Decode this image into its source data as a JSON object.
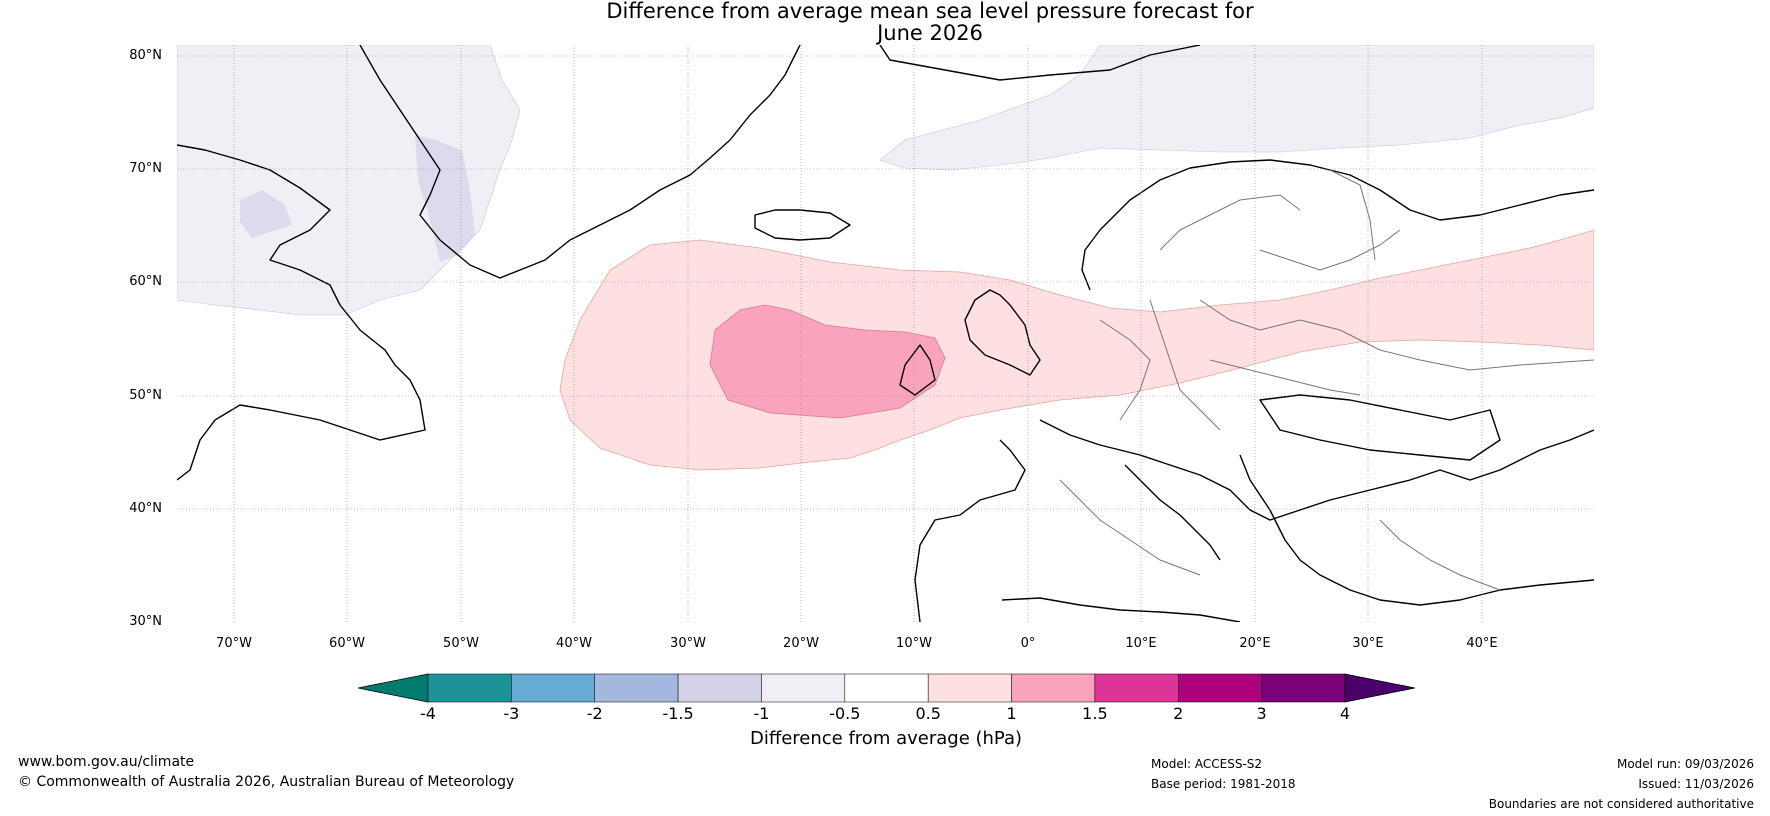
{
  "title": {
    "line1": "Difference from average mean sea level pressure forecast for",
    "line2": "June 2026"
  },
  "map": {
    "latitude_labels": [
      "80°N",
      "70°N",
      "60°N",
      "50°N",
      "40°N",
      "30°N"
    ],
    "longitude_labels": [
      "70°W",
      "60°W",
      "50°W",
      "40°W",
      "30°W",
      "20°W",
      "10°W",
      "0°",
      "10°E",
      "20°E",
      "30°E",
      "40°E"
    ],
    "lon_range": [
      -75,
      50
    ],
    "lat_range": [
      30,
      81
    ],
    "anomaly_regions": [
      {
        "name": "greenland-labrador",
        "bin": "-1 to -0.5",
        "color": "#f2eef5"
      },
      {
        "name": "svalbard-arctic",
        "bin": "-1 to -0.5",
        "color": "#f2eef5"
      },
      {
        "name": "baffin-small",
        "bin": "-1.5 to -1",
        "color": "#d3d2e8"
      },
      {
        "name": "north-atlantic-europe",
        "bin": "0.5 to 1",
        "color": "#fde0df"
      },
      {
        "name": "west-of-ireland",
        "bin": "1 to 1.5",
        "color": "#f9a3bc"
      }
    ]
  },
  "colorbar": {
    "label": "Difference from average (hPa)",
    "ticks": [
      "-4",
      "-3",
      "-2",
      "-1.5",
      "-1",
      "-0.5",
      "0.5",
      "1",
      "1.5",
      "2",
      "3",
      "4"
    ],
    "colors": [
      "#017b6e",
      "#1c9299",
      "#67aad2",
      "#a5b7dc",
      "#d3d2e8",
      "#f2eef5",
      "#ffffff",
      "#fde0df",
      "#f9a3bc",
      "#dd3497",
      "#ae017e",
      "#7a0177",
      "#49006a"
    ]
  },
  "footer": {
    "website": "www.bom.gov.au/climate",
    "copyright": "© Commonwealth of Australia 2026, Australian Bureau of Meteorology",
    "model": "Model: ACCESS-S2",
    "base_period": "Base period: 1981-2018",
    "model_run": "Model run: 09/03/2026",
    "issued": "Issued: 11/03/2026",
    "disclaimer": "Boundaries are not considered authoritative"
  }
}
